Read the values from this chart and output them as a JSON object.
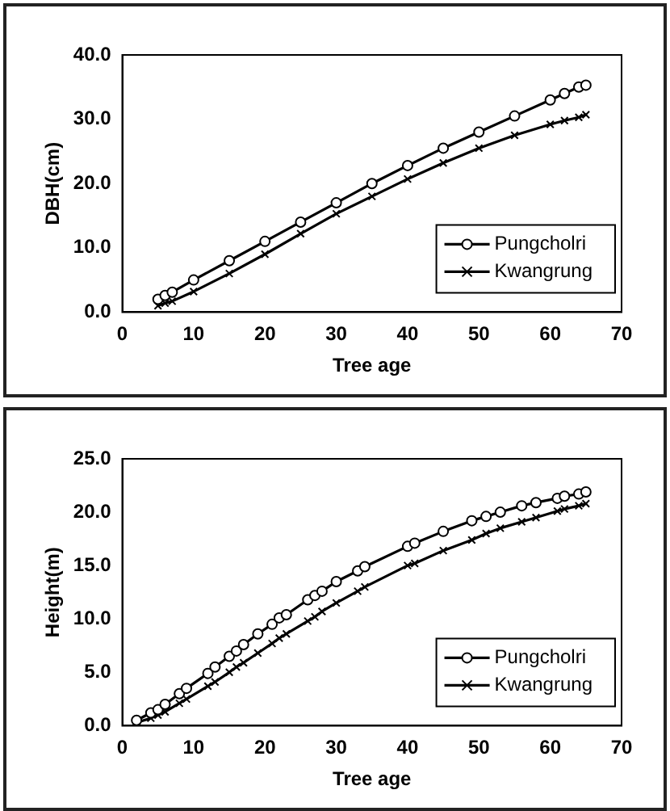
{
  "chart_data": [
    {
      "type": "line",
      "xlabel": "Tree age",
      "ylabel": "DBH(cm)",
      "xlim": [
        0,
        70
      ],
      "xticks": [
        0,
        10,
        20,
        30,
        40,
        50,
        60,
        70
      ],
      "ylim": [
        0,
        40
      ],
      "yticks": [
        {
          "value": 0,
          "label": "0.0"
        },
        {
          "value": 10,
          "label": "10.0"
        },
        {
          "value": 20,
          "label": "20.0"
        },
        {
          "value": 30,
          "label": "30.0"
        },
        {
          "value": 40,
          "label": "40.0"
        }
      ],
      "grid": false,
      "legend": "bottom right",
      "line_style": "solid",
      "series": [
        {
          "name": "Pungcholri",
          "color": "#000000",
          "marker": "circle",
          "x": [
            5,
            6,
            7,
            10,
            15,
            20,
            25,
            30,
            35,
            40,
            45,
            50,
            55,
            60,
            62,
            64,
            65
          ],
          "values": [
            2.0,
            2.6,
            3.1,
            5.0,
            8.0,
            11.0,
            14.0,
            17.0,
            20.0,
            22.8,
            25.5,
            28.0,
            30.5,
            33.0,
            34.0,
            35.0,
            35.3
          ]
        },
        {
          "name": "Kwangrung",
          "color": "#000000",
          "marker": "cross",
          "x": [
            5,
            6,
            7,
            10,
            15,
            20,
            25,
            30,
            35,
            40,
            45,
            50,
            55,
            60,
            62,
            64,
            65
          ],
          "values": [
            1.0,
            1.4,
            1.7,
            3.2,
            6.0,
            9.0,
            12.2,
            15.3,
            18.0,
            20.7,
            23.2,
            25.5,
            27.5,
            29.2,
            29.8,
            30.3,
            30.7
          ]
        }
      ]
    },
    {
      "type": "line",
      "xlabel": "Tree age",
      "ylabel": "Height(m)",
      "xlim": [
        0,
        70
      ],
      "xticks": [
        0,
        10,
        20,
        30,
        40,
        50,
        60,
        70
      ],
      "ylim": [
        0,
        25
      ],
      "yticks": [
        {
          "value": 0,
          "label": "0.0"
        },
        {
          "value": 5,
          "label": "5.0"
        },
        {
          "value": 10,
          "label": "10.0"
        },
        {
          "value": 15,
          "label": "15.0"
        },
        {
          "value": 20,
          "label": "20.0"
        },
        {
          "value": 25,
          "label": "25.0"
        }
      ],
      "grid": false,
      "legend": "bottom right",
      "line_style": "solid",
      "series": [
        {
          "name": "Pungcholri",
          "color": "#000000",
          "marker": "circle",
          "x": [
            2,
            4,
            5,
            6,
            8,
            9,
            12,
            13,
            15,
            16,
            17,
            19,
            21,
            22,
            23,
            26,
            27,
            28,
            30,
            33,
            34,
            40,
            41,
            45,
            49,
            51,
            53,
            56,
            58,
            61,
            62,
            64,
            65
          ],
          "values": [
            0.5,
            1.2,
            1.5,
            2.0,
            3.0,
            3.5,
            4.9,
            5.5,
            6.5,
            7.0,
            7.6,
            8.6,
            9.5,
            10.1,
            10.4,
            11.8,
            12.2,
            12.6,
            13.5,
            14.5,
            14.9,
            16.8,
            17.1,
            18.2,
            19.2,
            19.6,
            20.0,
            20.6,
            20.9,
            21.3,
            21.5,
            21.7,
            21.9
          ]
        },
        {
          "name": "Kwangrung",
          "color": "#000000",
          "marker": "cross",
          "x": [
            2,
            4,
            5,
            6,
            8,
            9,
            12,
            13,
            15,
            16,
            17,
            19,
            21,
            22,
            23,
            26,
            27,
            28,
            30,
            33,
            34,
            40,
            41,
            45,
            49,
            51,
            53,
            56,
            58,
            61,
            62,
            64,
            65
          ],
          "values": [
            0.3,
            0.7,
            1.0,
            1.3,
            2.1,
            2.5,
            3.7,
            4.1,
            5.0,
            5.5,
            5.9,
            6.8,
            7.7,
            8.2,
            8.6,
            9.8,
            10.2,
            10.7,
            11.5,
            12.6,
            13.0,
            15.0,
            15.2,
            16.4,
            17.4,
            18.0,
            18.5,
            19.1,
            19.5,
            20.1,
            20.3,
            20.6,
            20.8
          ]
        }
      ]
    }
  ]
}
